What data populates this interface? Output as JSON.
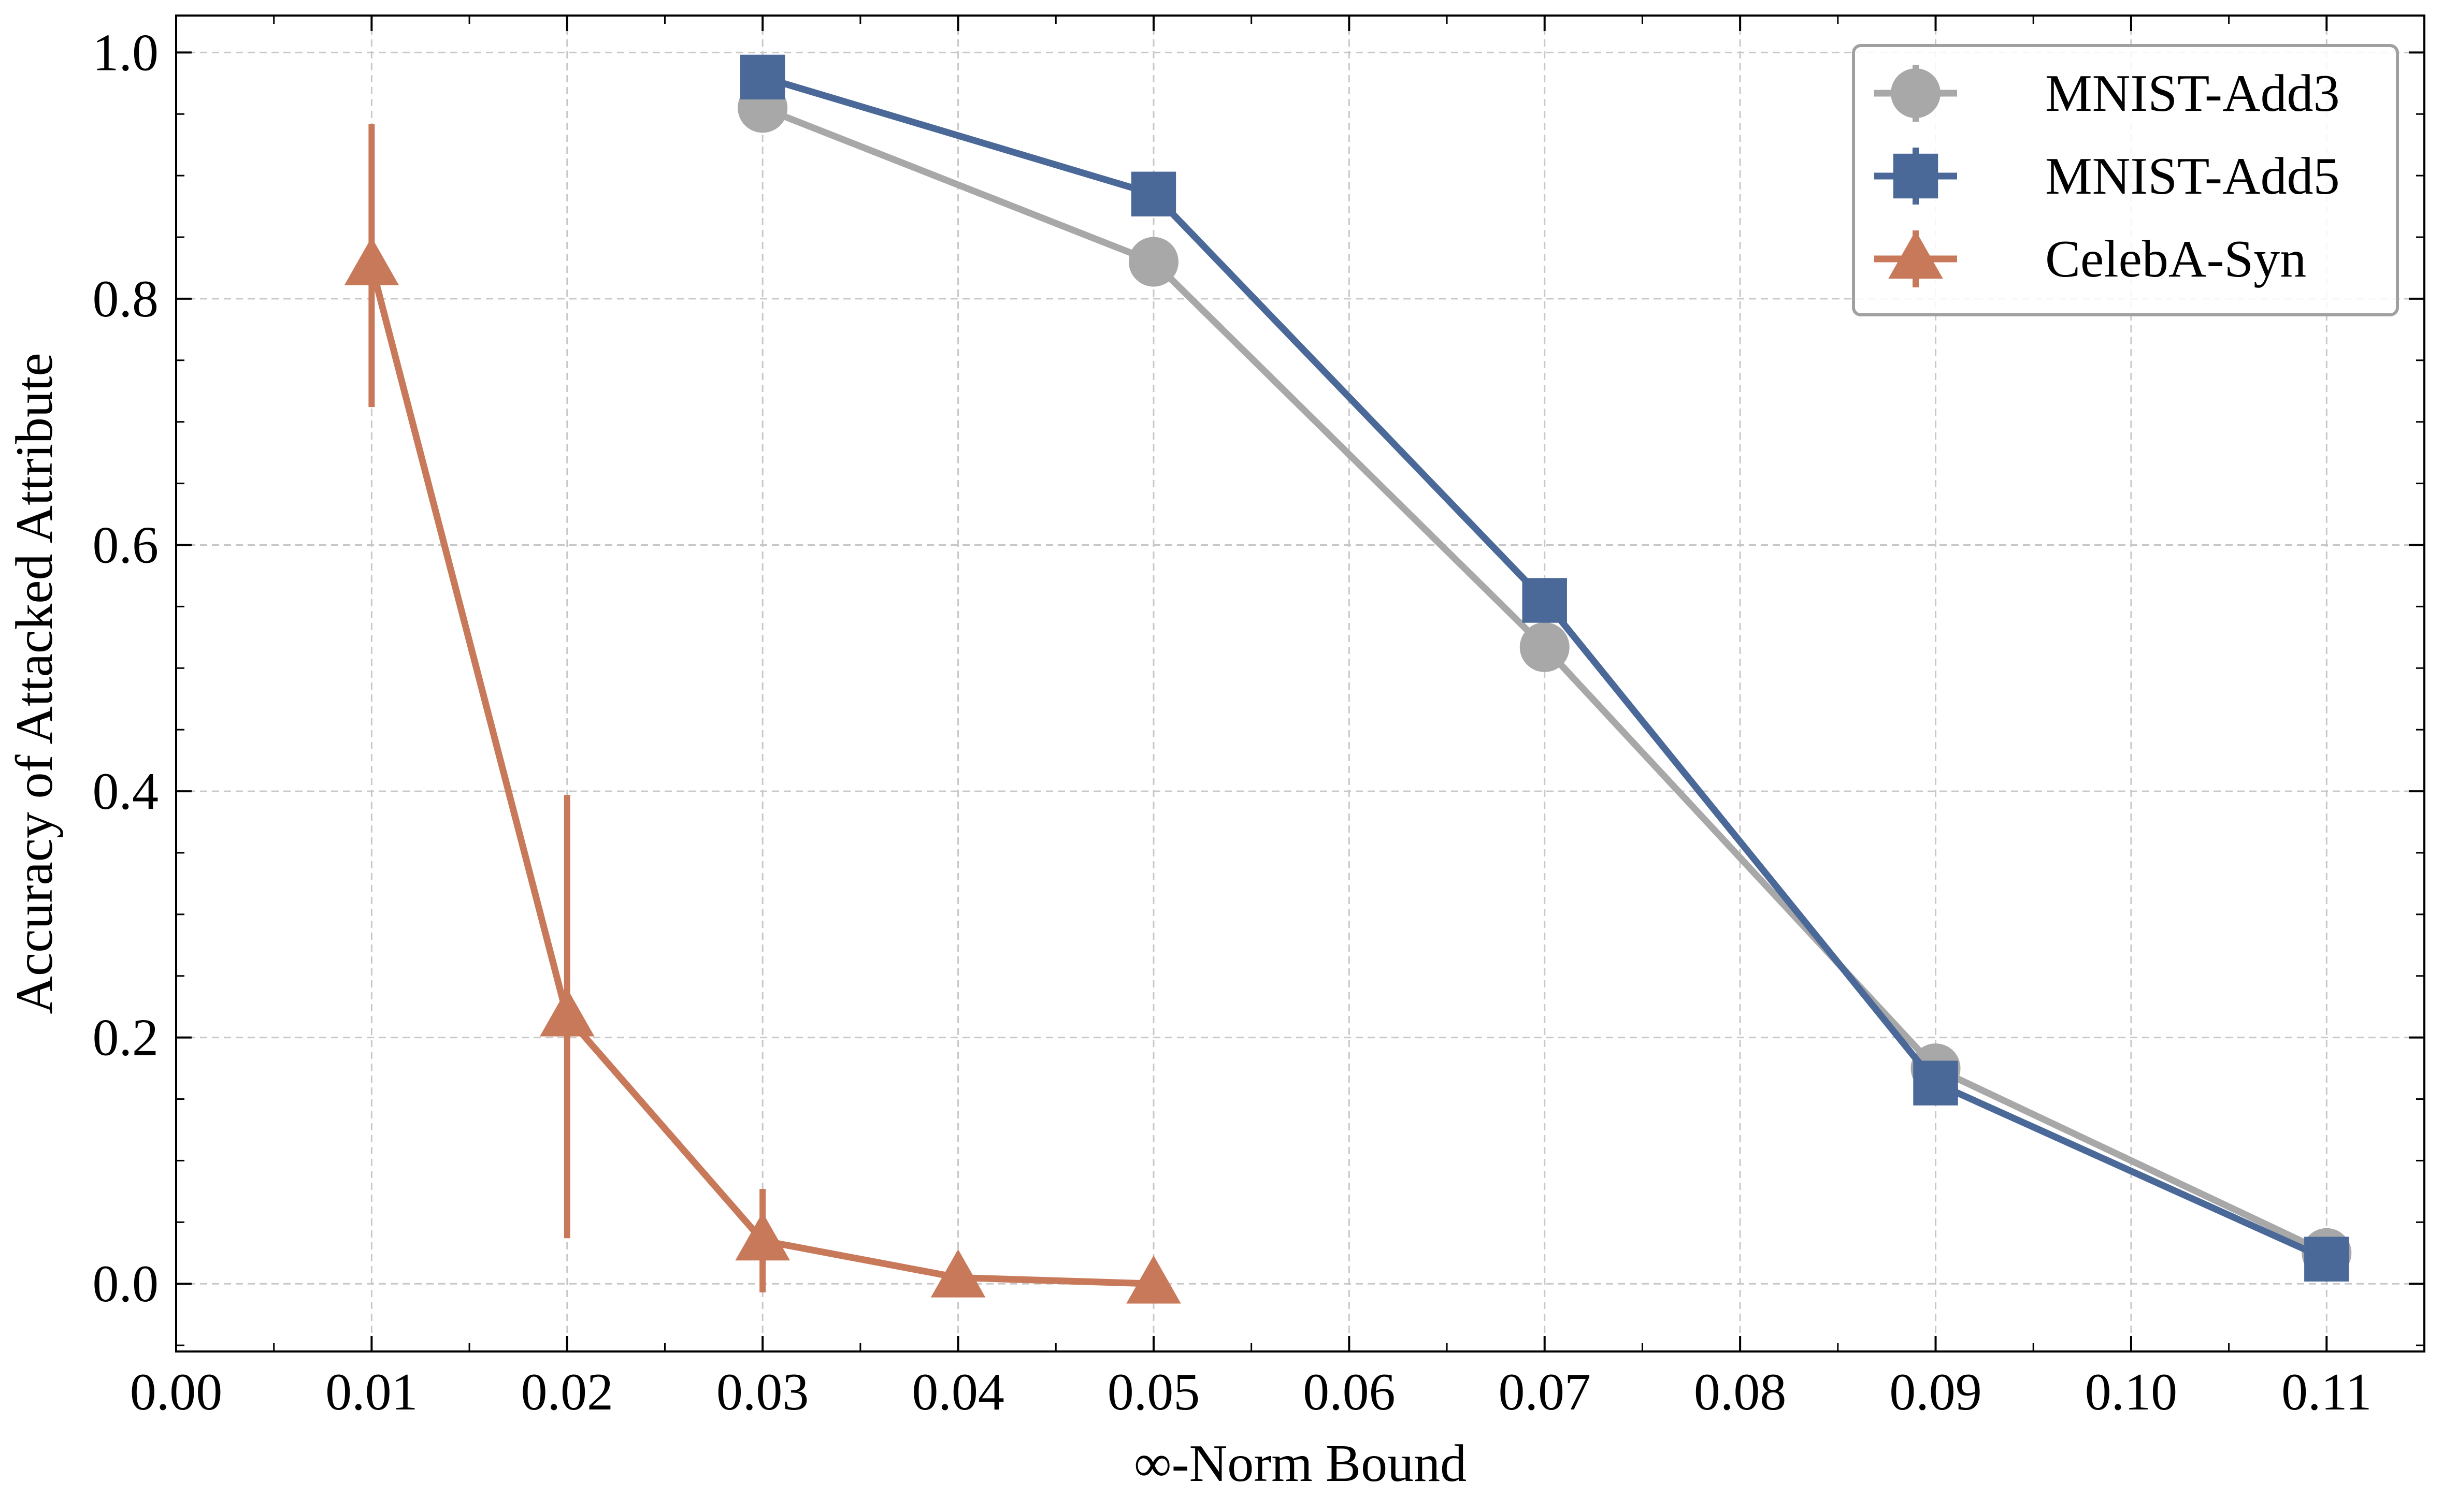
{
  "chart_data": {
    "type": "line",
    "title": "",
    "xlabel": "∞-Norm Bound",
    "ylabel": "Accuracy of Attacked Attribute",
    "xlim": [
      0.0,
      0.115
    ],
    "ylim": [
      -0.055,
      1.03
    ],
    "x_ticks": [
      0.0,
      0.01,
      0.02,
      0.03,
      0.04,
      0.05,
      0.06,
      0.07,
      0.08,
      0.09,
      0.1,
      0.11
    ],
    "x_tick_labels": [
      "0.00",
      "0.01",
      "0.02",
      "0.03",
      "0.04",
      "0.05",
      "0.06",
      "0.07",
      "0.08",
      "0.09",
      "0.10",
      "0.11"
    ],
    "y_ticks": [
      0.0,
      0.2,
      0.4,
      0.6,
      0.8,
      1.0
    ],
    "y_tick_labels": [
      "0.0",
      "0.2",
      "0.4",
      "0.6",
      "0.8",
      "1.0"
    ],
    "grid": true,
    "legend_position": "top-right",
    "series": [
      {
        "name": "MNIST-Add3",
        "color": "#a8a8a8",
        "marker": "circle",
        "x": [
          0.03,
          0.05,
          0.07,
          0.09,
          0.11
        ],
        "y": [
          0.955,
          0.83,
          0.517,
          0.175,
          0.025
        ],
        "yerr": [
          0,
          0,
          0,
          0,
          0
        ]
      },
      {
        "name": "MNIST-Add5",
        "color": "#4a6898",
        "marker": "square",
        "x": [
          0.03,
          0.05,
          0.07,
          0.09,
          0.11
        ],
        "y": [
          0.98,
          0.885,
          0.555,
          0.163,
          0.02
        ],
        "yerr": [
          0,
          0,
          0,
          0,
          0
        ]
      },
      {
        "name": "CelebA-Syn",
        "color": "#c8795a",
        "marker": "triangle",
        "x": [
          0.01,
          0.02,
          0.03,
          0.04,
          0.05
        ],
        "y": [
          0.827,
          0.217,
          0.035,
          0.005,
          0.0
        ],
        "yerr": [
          0.115,
          0.18,
          0.042,
          0,
          0
        ]
      }
    ]
  }
}
